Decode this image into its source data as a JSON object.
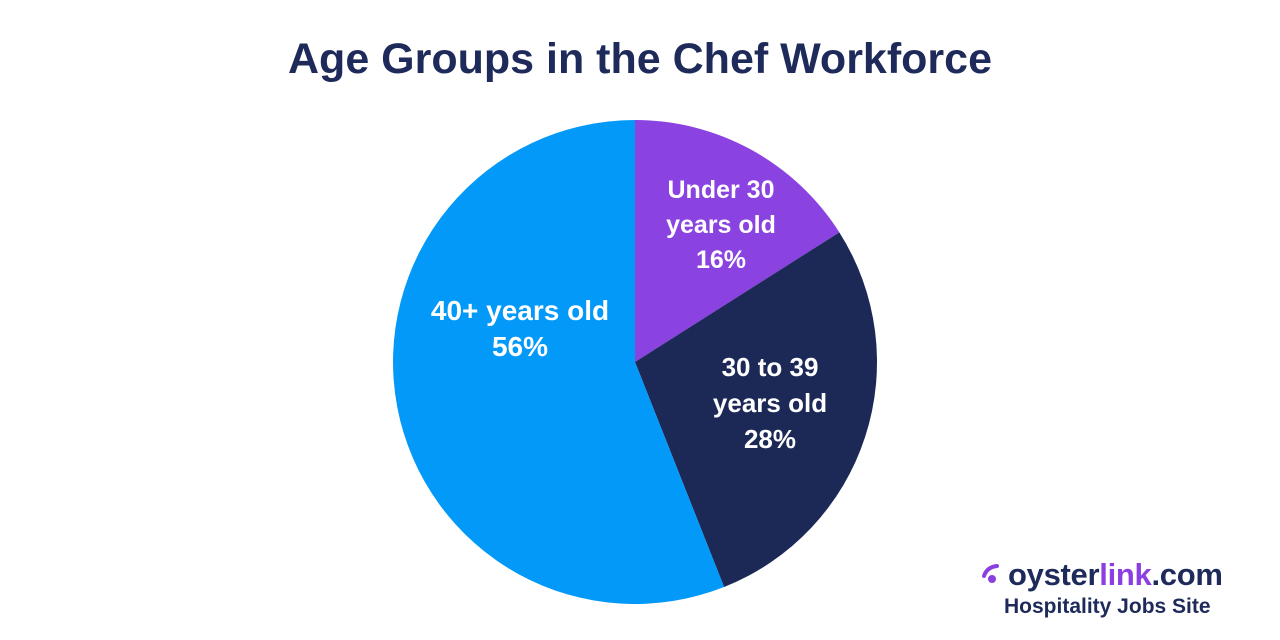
{
  "chart_data": {
    "type": "pie",
    "title": "Age Groups in the Chef Workforce",
    "start_angle_deg": 0,
    "direction": "clockwise",
    "slices": [
      {
        "label_lines": [
          "Under 30",
          "years old",
          "16%"
        ],
        "category": "Under 30 years old",
        "value": 16,
        "color": "#8a42e0"
      },
      {
        "label_lines": [
          "30 to 39",
          "years old",
          "28%"
        ],
        "category": "30 to 39 years old",
        "value": 28,
        "color": "#1c2957"
      },
      {
        "label_lines": [
          "40+ years old",
          "56%"
        ],
        "category": "40+ years old",
        "value": 56,
        "color": "#0399f8"
      }
    ]
  },
  "brand": {
    "name_part1": "oyster",
    "name_part2": "link",
    "name_part3": ".com",
    "tagline": "Hospitality Jobs Site",
    "logo_icon": "oyster-pearl-icon",
    "accent_color": "#8c3fe0",
    "text_color": "#1e2a5a"
  }
}
